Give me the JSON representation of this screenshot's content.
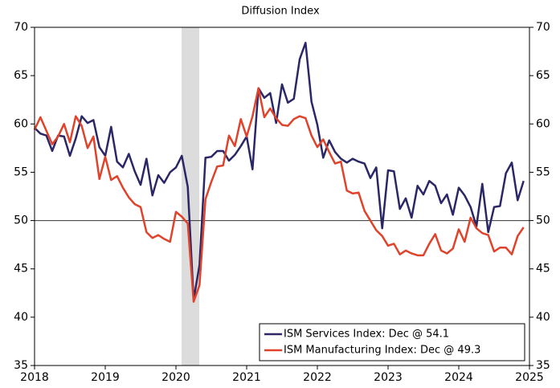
{
  "chart_data": {
    "type": "line",
    "subtitle": "Diffusion Index",
    "x": [
      2018,
      2018.083,
      2018.167,
      2018.25,
      2018.333,
      2018.417,
      2018.5,
      2018.583,
      2018.667,
      2018.75,
      2018.833,
      2018.917,
      2019,
      2019.083,
      2019.167,
      2019.25,
      2019.333,
      2019.417,
      2019.5,
      2019.583,
      2019.667,
      2019.75,
      2019.833,
      2019.917,
      2020,
      2020.083,
      2020.167,
      2020.25,
      2020.333,
      2020.417,
      2020.5,
      2020.583,
      2020.667,
      2020.75,
      2020.833,
      2020.917,
      2021,
      2021.083,
      2021.167,
      2021.25,
      2021.333,
      2021.417,
      2021.5,
      2021.583,
      2021.667,
      2021.75,
      2021.833,
      2021.917,
      2022,
      2022.083,
      2022.167,
      2022.25,
      2022.333,
      2022.417,
      2022.5,
      2022.583,
      2022.667,
      2022.75,
      2022.833,
      2022.917,
      2023,
      2023.083,
      2023.167,
      2023.25,
      2023.333,
      2023.417,
      2023.5,
      2023.583,
      2023.667,
      2023.75,
      2023.833,
      2023.917,
      2024,
      2024.083,
      2024.167,
      2024.25,
      2024.333,
      2024.417,
      2024.5,
      2024.583,
      2024.667,
      2024.75,
      2024.833,
      2024.917
    ],
    "series": [
      {
        "name": "ISM Services Index: Dec @ 54.1",
        "color": "#2b2766",
        "values": [
          59.6,
          59.0,
          58.8,
          57.2,
          58.8,
          58.7,
          56.7,
          58.5,
          60.8,
          60.1,
          60.4,
          57.6,
          56.7,
          59.7,
          56.1,
          55.5,
          56.9,
          55.1,
          53.7,
          56.4,
          52.6,
          54.7,
          53.9,
          55.0,
          55.5,
          56.7,
          53.5,
          41.8,
          45.4,
          56.5,
          56.6,
          57.2,
          57.2,
          56.2,
          56.8,
          57.7,
          58.7,
          55.3,
          63.7,
          62.7,
          63.2,
          60.1,
          64.1,
          62.2,
          62.6,
          66.7,
          68.4,
          62.3,
          59.9,
          56.5,
          58.3,
          57.1,
          56.4,
          56.0,
          56.4,
          56.1,
          55.9,
          54.4,
          55.5,
          49.2,
          55.2,
          55.1,
          51.2,
          52.3,
          50.3,
          53.6,
          52.7,
          54.1,
          53.6,
          51.8,
          52.7,
          50.6,
          53.4,
          52.6,
          51.4,
          49.4,
          53.8,
          48.8,
          51.4,
          51.5,
          54.9,
          56.0,
          52.1,
          54.1
        ]
      },
      {
        "name": "ISM Manufacturing Index: Dec @ 49.3",
        "color": "#e0432b",
        "values": [
          59.4,
          60.7,
          59.3,
          57.9,
          58.7,
          60.0,
          58.1,
          60.8,
          59.8,
          57.5,
          58.7,
          54.3,
          56.6,
          54.2,
          54.6,
          53.4,
          52.4,
          51.7,
          51.4,
          48.8,
          48.2,
          48.5,
          48.1,
          47.8,
          50.9,
          50.4,
          49.7,
          41.6,
          43.3,
          52.2,
          54.0,
          55.6,
          55.7,
          58.8,
          57.7,
          60.5,
          58.7,
          60.8,
          63.7,
          60.7,
          61.6,
          60.6,
          59.9,
          59.8,
          60.5,
          60.8,
          60.6,
          58.8,
          57.6,
          58.4,
          57.1,
          55.9,
          56.1,
          53.1,
          52.8,
          52.9,
          51.0,
          50.0,
          49.0,
          48.4,
          47.4,
          47.6,
          46.5,
          46.9,
          46.6,
          46.4,
          46.4,
          47.6,
          48.6,
          46.9,
          46.6,
          47.1,
          49.1,
          47.8,
          50.3,
          49.2,
          48.7,
          48.5,
          46.8,
          47.2,
          47.2,
          46.5,
          48.4,
          49.3
        ]
      }
    ],
    "xlim": [
      2018,
      2025
    ],
    "xticks": [
      2018,
      2019,
      2020,
      2021,
      2022,
      2023,
      2024,
      2025
    ],
    "ylim": [
      35,
      70
    ],
    "yticks": [
      35,
      40,
      45,
      50,
      55,
      60,
      65,
      70
    ],
    "reference_line": 50,
    "shaded_range": [
      2020.08,
      2020.33
    ],
    "legend": "lower right"
  }
}
